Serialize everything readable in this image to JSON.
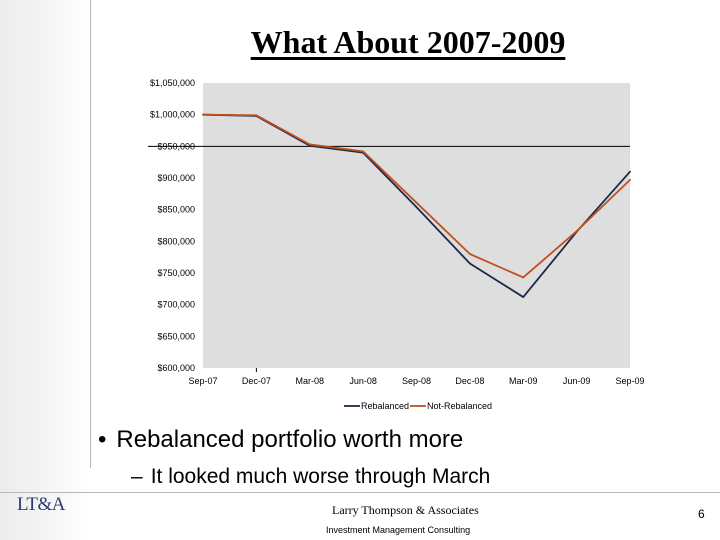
{
  "slide": {
    "title": "What About 2007-2009",
    "bullet": "Rebalanced portfolio worth more",
    "sub_bullet": "It looked much worse through March",
    "bullet_marker": "•",
    "sub_bullet_marker": "–",
    "footer_company": "Larry Thompson & Associates",
    "footer_tagline": "Investment Management Consulting",
    "logo_text": "LT&A",
    "page_number": "6"
  },
  "chart_data": {
    "type": "line",
    "title": "",
    "xlabel": "",
    "ylabel": "",
    "categories": [
      "Sep-07",
      "Dec-07",
      "Mar-08",
      "Jun-08",
      "Sep-08",
      "Dec-08",
      "Mar-09",
      "Jun-09",
      "Sep-09"
    ],
    "x_tick_labels": [
      "Sep-07",
      "Dec-07",
      "Mar-08",
      "Jun-08",
      "Sep-08",
      "Dec-08",
      "Mar-09",
      "Jun-09",
      "Sep-09"
    ],
    "y_tick_labels": [
      "$1,050,000",
      "$1,000,000",
      "$950,000",
      "$900,000",
      "$850,000",
      "$800,000",
      "$750,000",
      "$700,000",
      "$650,000",
      "$600,000"
    ],
    "y_tick_values": [
      1050000,
      1000000,
      950000,
      900000,
      850000,
      800000,
      750000,
      700000,
      650000,
      600000
    ],
    "ylim": [
      600000,
      1050000
    ],
    "reference_line": 950000,
    "series": [
      {
        "name": "Rebalanced",
        "color": "#1b2a4a",
        "values": [
          1000000,
          998000,
          951000,
          940000,
          854000,
          765000,
          712000,
          815000,
          910000
        ]
      },
      {
        "name": "Not-Rebalanced",
        "color": "#c0501c",
        "values": [
          1000000,
          999000,
          953000,
          942000,
          861000,
          780000,
          743000,
          816000,
          897000
        ]
      }
    ],
    "legend_position": "bottom-center",
    "plot_background": "#dedede"
  }
}
